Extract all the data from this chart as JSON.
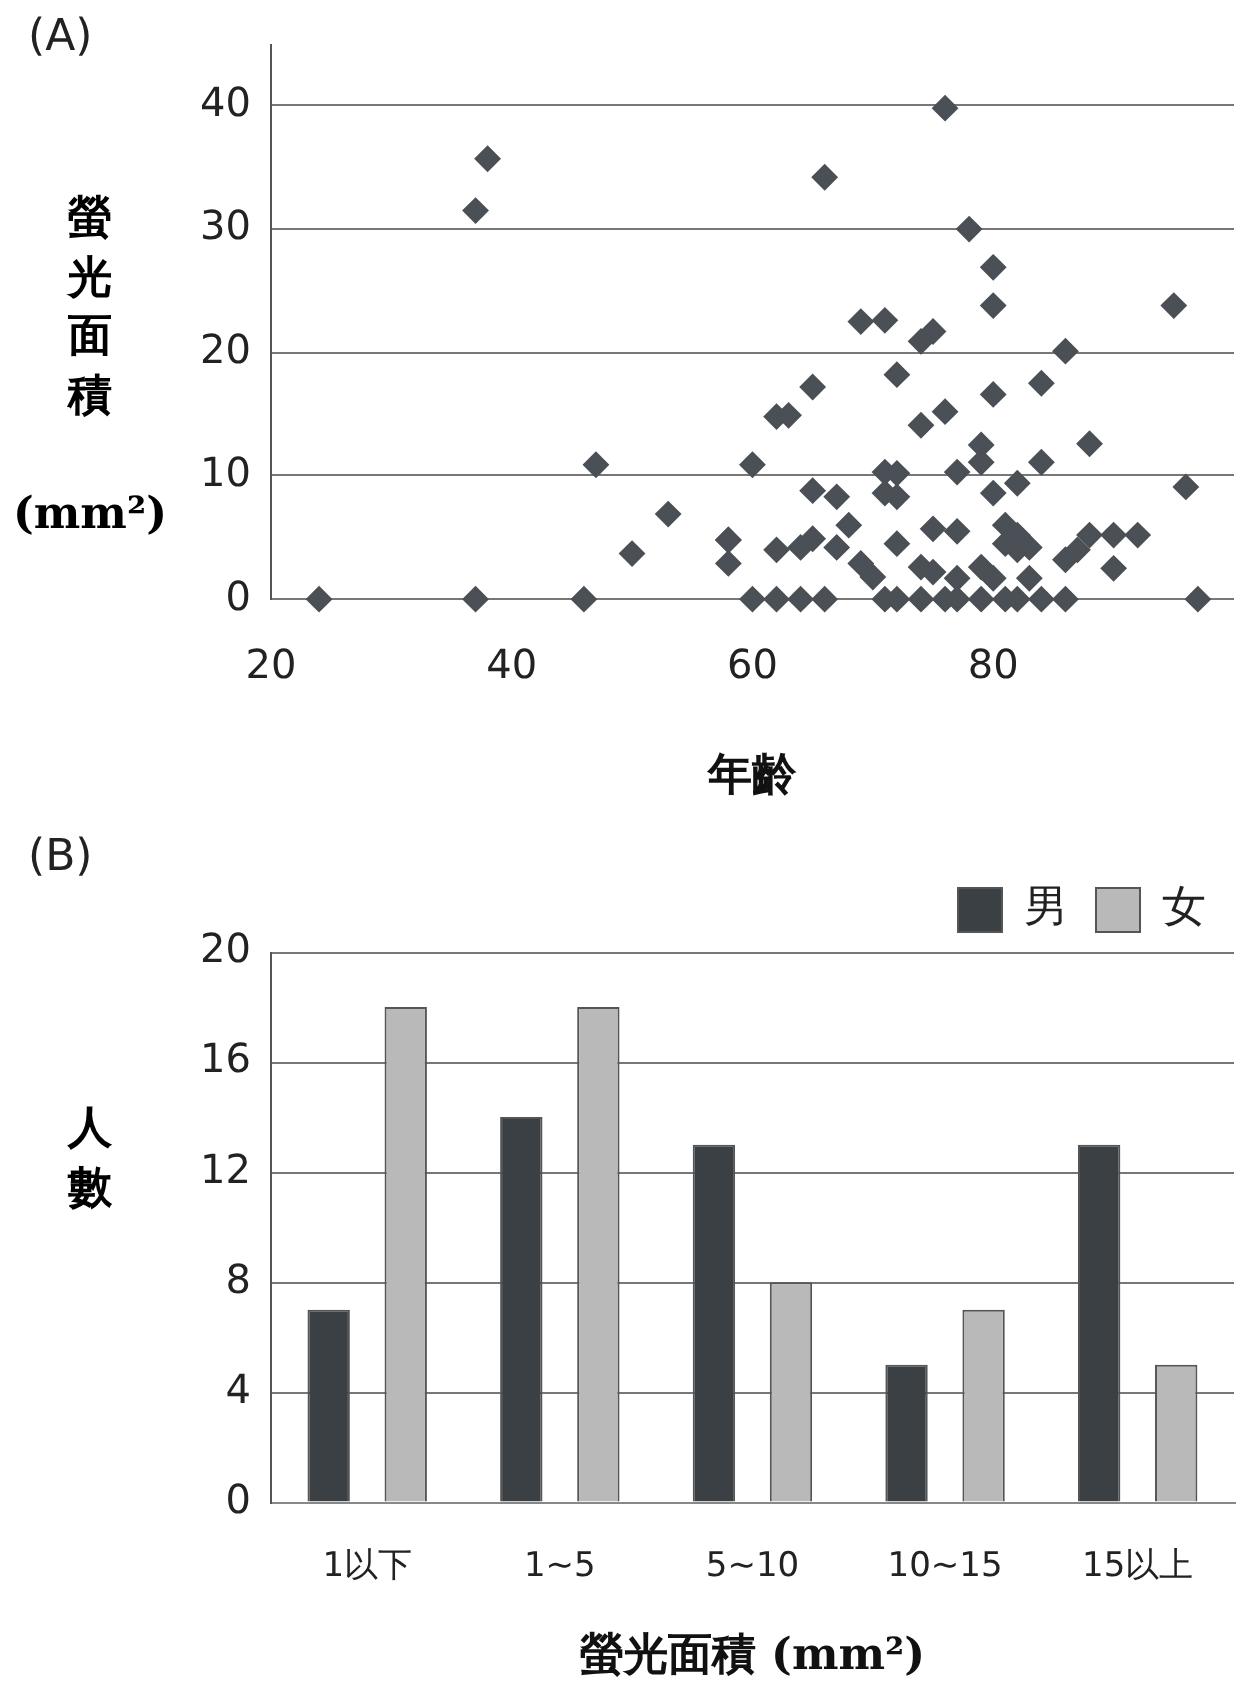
{
  "chart_data": [
    {
      "type": "scatter",
      "xlabel": "年齡",
      "ylabel": "螢光面積 (mm²)",
      "annotations": [
        "(A)"
      ],
      "marker": "diamond",
      "grid": "y",
      "xlim": [
        20,
        100
      ],
      "xticks": [
        20,
        40,
        60,
        80
      ],
      "ylim": [
        0,
        45
      ],
      "yticks": [
        0,
        10,
        20,
        30,
        40
      ],
      "series": [
        {
          "color": "#4a5055",
          "x": [
            24,
            37,
            46,
            38,
            37,
            47,
            53,
            50,
            58,
            58,
            76,
            66,
            78,
            80,
            80,
            95,
            69,
            71,
            74,
            75,
            86,
            72,
            65,
            84,
            80,
            62,
            63,
            76,
            74,
            88,
            79,
            79,
            60,
            71,
            72,
            77,
            84,
            65,
            72,
            96,
            68,
            71,
            67,
            58,
            62,
            64,
            65,
            67,
            72,
            75,
            77,
            81,
            82,
            81,
            83,
            82,
            80,
            82,
            88,
            90,
            92,
            86,
            87,
            69,
            70,
            74,
            75,
            77,
            79,
            80,
            83,
            90,
            60,
            62,
            64,
            66,
            71,
            72,
            74,
            76,
            77,
            79,
            81,
            82,
            84,
            86,
            97
          ],
          "values": [
            0,
            0,
            0,
            35.7,
            31.5,
            10.9,
            6.9,
            3.7,
            4.8,
            2.9,
            39.8,
            34.2,
            30,
            26.9,
            23.8,
            23.8,
            22.5,
            22.6,
            20.9,
            21.7,
            20.1,
            18.2,
            17.2,
            17.5,
            16.6,
            14.8,
            14.9,
            15.2,
            14.1,
            12.6,
            12.5,
            11.1,
            10.9,
            10.3,
            10.2,
            10.3,
            11.1,
            8.8,
            8.3,
            9.1,
            6,
            8.6,
            8.3,
            4.8,
            4,
            4.2,
            4.9,
            4.2,
            4.5,
            5.7,
            5.5,
            6,
            5.2,
            4.5,
            4.2,
            4,
            8.6,
            9.4,
            5.2,
            5.2,
            5.2,
            3.2,
            4,
            2.9,
            1.8,
            2.6,
            2.2,
            1.7,
            2.6,
            1.7,
            1.7,
            2.5,
            0,
            0,
            0,
            0,
            0,
            0,
            0,
            0,
            0,
            0,
            0,
            0,
            0,
            0,
            0
          ]
        }
      ]
    },
    {
      "type": "bar",
      "xlabel": "螢光面積 (mm²)",
      "ylabel": "人數",
      "annotations": [
        "(B)"
      ],
      "legend": "top right",
      "grid": "y",
      "ylim": [
        0,
        20
      ],
      "yticks": [
        0,
        4,
        8,
        12,
        16,
        20
      ],
      "categories": [
        "1以下",
        "1~5",
        "5~10",
        "10~15",
        "15以上"
      ],
      "series": [
        {
          "name": "男",
          "color": "#3b4045",
          "values": [
            7,
            14,
            13,
            5,
            13
          ]
        },
        {
          "name": "女",
          "color": "#b9b9b9",
          "values": [
            18,
            18,
            8,
            7,
            5
          ]
        }
      ]
    }
  ]
}
